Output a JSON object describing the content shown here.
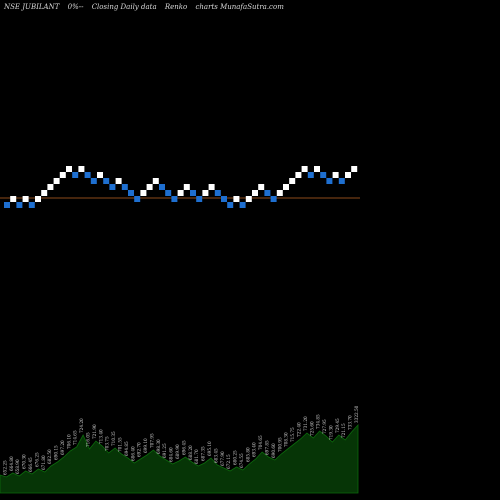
{
  "header": {
    "symbol": "NSE JUBILANT",
    "pct": "0%--",
    "chart_desc": "Closing Daily data",
    "chart_kind": "Renko",
    "site": "charts MunafaSutra.com"
  },
  "colors": {
    "background": "#000000",
    "up_brick": "#ffffff",
    "down_brick": "#1e6fd0",
    "baseline": "#8b4a1a",
    "volume_area": "#063506",
    "volume_line": "#0c6a0c",
    "volume_label": "#cfcfcf"
  },
  "chart_data": {
    "type": "renko",
    "bricks": [
      {
        "level": 0,
        "dir": "down"
      },
      {
        "level": 1,
        "dir": "up"
      },
      {
        "level": 0,
        "dir": "down"
      },
      {
        "level": 1,
        "dir": "up"
      },
      {
        "level": 0,
        "dir": "down"
      },
      {
        "level": 1,
        "dir": "up"
      },
      {
        "level": 2,
        "dir": "up"
      },
      {
        "level": 3,
        "dir": "up"
      },
      {
        "level": 4,
        "dir": "up"
      },
      {
        "level": 5,
        "dir": "up"
      },
      {
        "level": 6,
        "dir": "up"
      },
      {
        "level": 5,
        "dir": "down"
      },
      {
        "level": 6,
        "dir": "up"
      },
      {
        "level": 5,
        "dir": "down"
      },
      {
        "level": 4,
        "dir": "down"
      },
      {
        "level": 5,
        "dir": "up"
      },
      {
        "level": 4,
        "dir": "down"
      },
      {
        "level": 3,
        "dir": "down"
      },
      {
        "level": 4,
        "dir": "up"
      },
      {
        "level": 3,
        "dir": "down"
      },
      {
        "level": 2,
        "dir": "down"
      },
      {
        "level": 1,
        "dir": "down"
      },
      {
        "level": 2,
        "dir": "up"
      },
      {
        "level": 3,
        "dir": "up"
      },
      {
        "level": 4,
        "dir": "up"
      },
      {
        "level": 3,
        "dir": "down"
      },
      {
        "level": 2,
        "dir": "down"
      },
      {
        "level": 1,
        "dir": "down"
      },
      {
        "level": 2,
        "dir": "up"
      },
      {
        "level": 3,
        "dir": "up"
      },
      {
        "level": 2,
        "dir": "down"
      },
      {
        "level": 1,
        "dir": "down"
      },
      {
        "level": 2,
        "dir": "up"
      },
      {
        "level": 3,
        "dir": "up"
      },
      {
        "level": 2,
        "dir": "down"
      },
      {
        "level": 1,
        "dir": "down"
      },
      {
        "level": 0,
        "dir": "down"
      },
      {
        "level": 1,
        "dir": "up"
      },
      {
        "level": 0,
        "dir": "down"
      },
      {
        "level": 1,
        "dir": "up"
      },
      {
        "level": 2,
        "dir": "up"
      },
      {
        "level": 3,
        "dir": "up"
      },
      {
        "level": 2,
        "dir": "down"
      },
      {
        "level": 1,
        "dir": "down"
      },
      {
        "level": 2,
        "dir": "up"
      },
      {
        "level": 3,
        "dir": "up"
      },
      {
        "level": 4,
        "dir": "up"
      },
      {
        "level": 5,
        "dir": "up"
      },
      {
        "level": 6,
        "dir": "up"
      },
      {
        "level": 5,
        "dir": "down"
      },
      {
        "level": 6,
        "dir": "up"
      },
      {
        "level": 5,
        "dir": "down"
      },
      {
        "level": 4,
        "dir": "down"
      },
      {
        "level": 5,
        "dir": "up"
      },
      {
        "level": 4,
        "dir": "down"
      },
      {
        "level": 5,
        "dir": "up"
      },
      {
        "level": 6,
        "dir": "up"
      }
    ],
    "baseline_level": 1,
    "volume": [
      {
        "value": 18,
        "label": "660.15"
      },
      {
        "value": 16,
        "label": "652.25"
      },
      {
        "value": 20,
        "label": "664.80"
      },
      {
        "value": 17,
        "label": "658.90"
      },
      {
        "value": 22,
        "label": "670.30"
      },
      {
        "value": 19,
        "label": "666.45"
      },
      {
        "value": 24,
        "label": "676.25"
      },
      {
        "value": 21,
        "label": "671.80"
      },
      {
        "value": 27,
        "label": "682.50"
      },
      {
        "value": 31,
        "label": "690.15"
      },
      {
        "value": 36,
        "label": "697.20"
      },
      {
        "value": 42,
        "label": "706.10"
      },
      {
        "value": 46,
        "label": "714.65"
      },
      {
        "value": 58,
        "label": "724.20"
      },
      {
        "value": 44,
        "label": "716.05"
      },
      {
        "value": 52,
        "label": "721.90"
      },
      {
        "value": 47,
        "label": "713.40"
      },
      {
        "value": 40,
        "label": "703.75"
      },
      {
        "value": 45,
        "label": "710.35"
      },
      {
        "value": 39,
        "label": "701.55"
      },
      {
        "value": 35,
        "label": "694.85"
      },
      {
        "value": 30,
        "label": "686.40"
      },
      {
        "value": 34,
        "label": "692.70"
      },
      {
        "value": 38,
        "label": "699.10"
      },
      {
        "value": 43,
        "label": "707.95"
      },
      {
        "value": 37,
        "label": "698.30"
      },
      {
        "value": 33,
        "label": "691.25"
      },
      {
        "value": 29,
        "label": "684.60"
      },
      {
        "value": 32,
        "label": "689.90"
      },
      {
        "value": 36,
        "label": "696.45"
      },
      {
        "value": 31,
        "label": "688.20"
      },
      {
        "value": 27,
        "label": "681.70"
      },
      {
        "value": 30,
        "label": "687.35"
      },
      {
        "value": 35,
        "label": "695.10"
      },
      {
        "value": 28,
        "label": "683.45"
      },
      {
        "value": 25,
        "label": "677.90"
      },
      {
        "value": 22,
        "label": "672.15"
      },
      {
        "value": 26,
        "label": "680.25"
      },
      {
        "value": 23,
        "label": "674.55"
      },
      {
        "value": 29,
        "label": "685.80"
      },
      {
        "value": 34,
        "label": "693.40"
      },
      {
        "value": 41,
        "label": "704.65"
      },
      {
        "value": 36,
        "label": "697.85"
      },
      {
        "value": 33,
        "label": "690.60"
      },
      {
        "value": 39,
        "label": "700.95"
      },
      {
        "value": 44,
        "label": "708.30"
      },
      {
        "value": 49,
        "label": "715.75"
      },
      {
        "value": 54,
        "label": "722.40"
      },
      {
        "value": 60,
        "label": "731.20"
      },
      {
        "value": 55,
        "label": "725.60"
      },
      {
        "value": 62,
        "label": "734.85"
      },
      {
        "value": 57,
        "label": "727.95"
      },
      {
        "value": 51,
        "label": "719.30"
      },
      {
        "value": 58,
        "label": "729.45"
      },
      {
        "value": 53,
        "label": "721.15"
      },
      {
        "value": 61,
        "label": "733.70"
      },
      {
        "value": 68,
        "label": "3322.50"
      }
    ]
  }
}
